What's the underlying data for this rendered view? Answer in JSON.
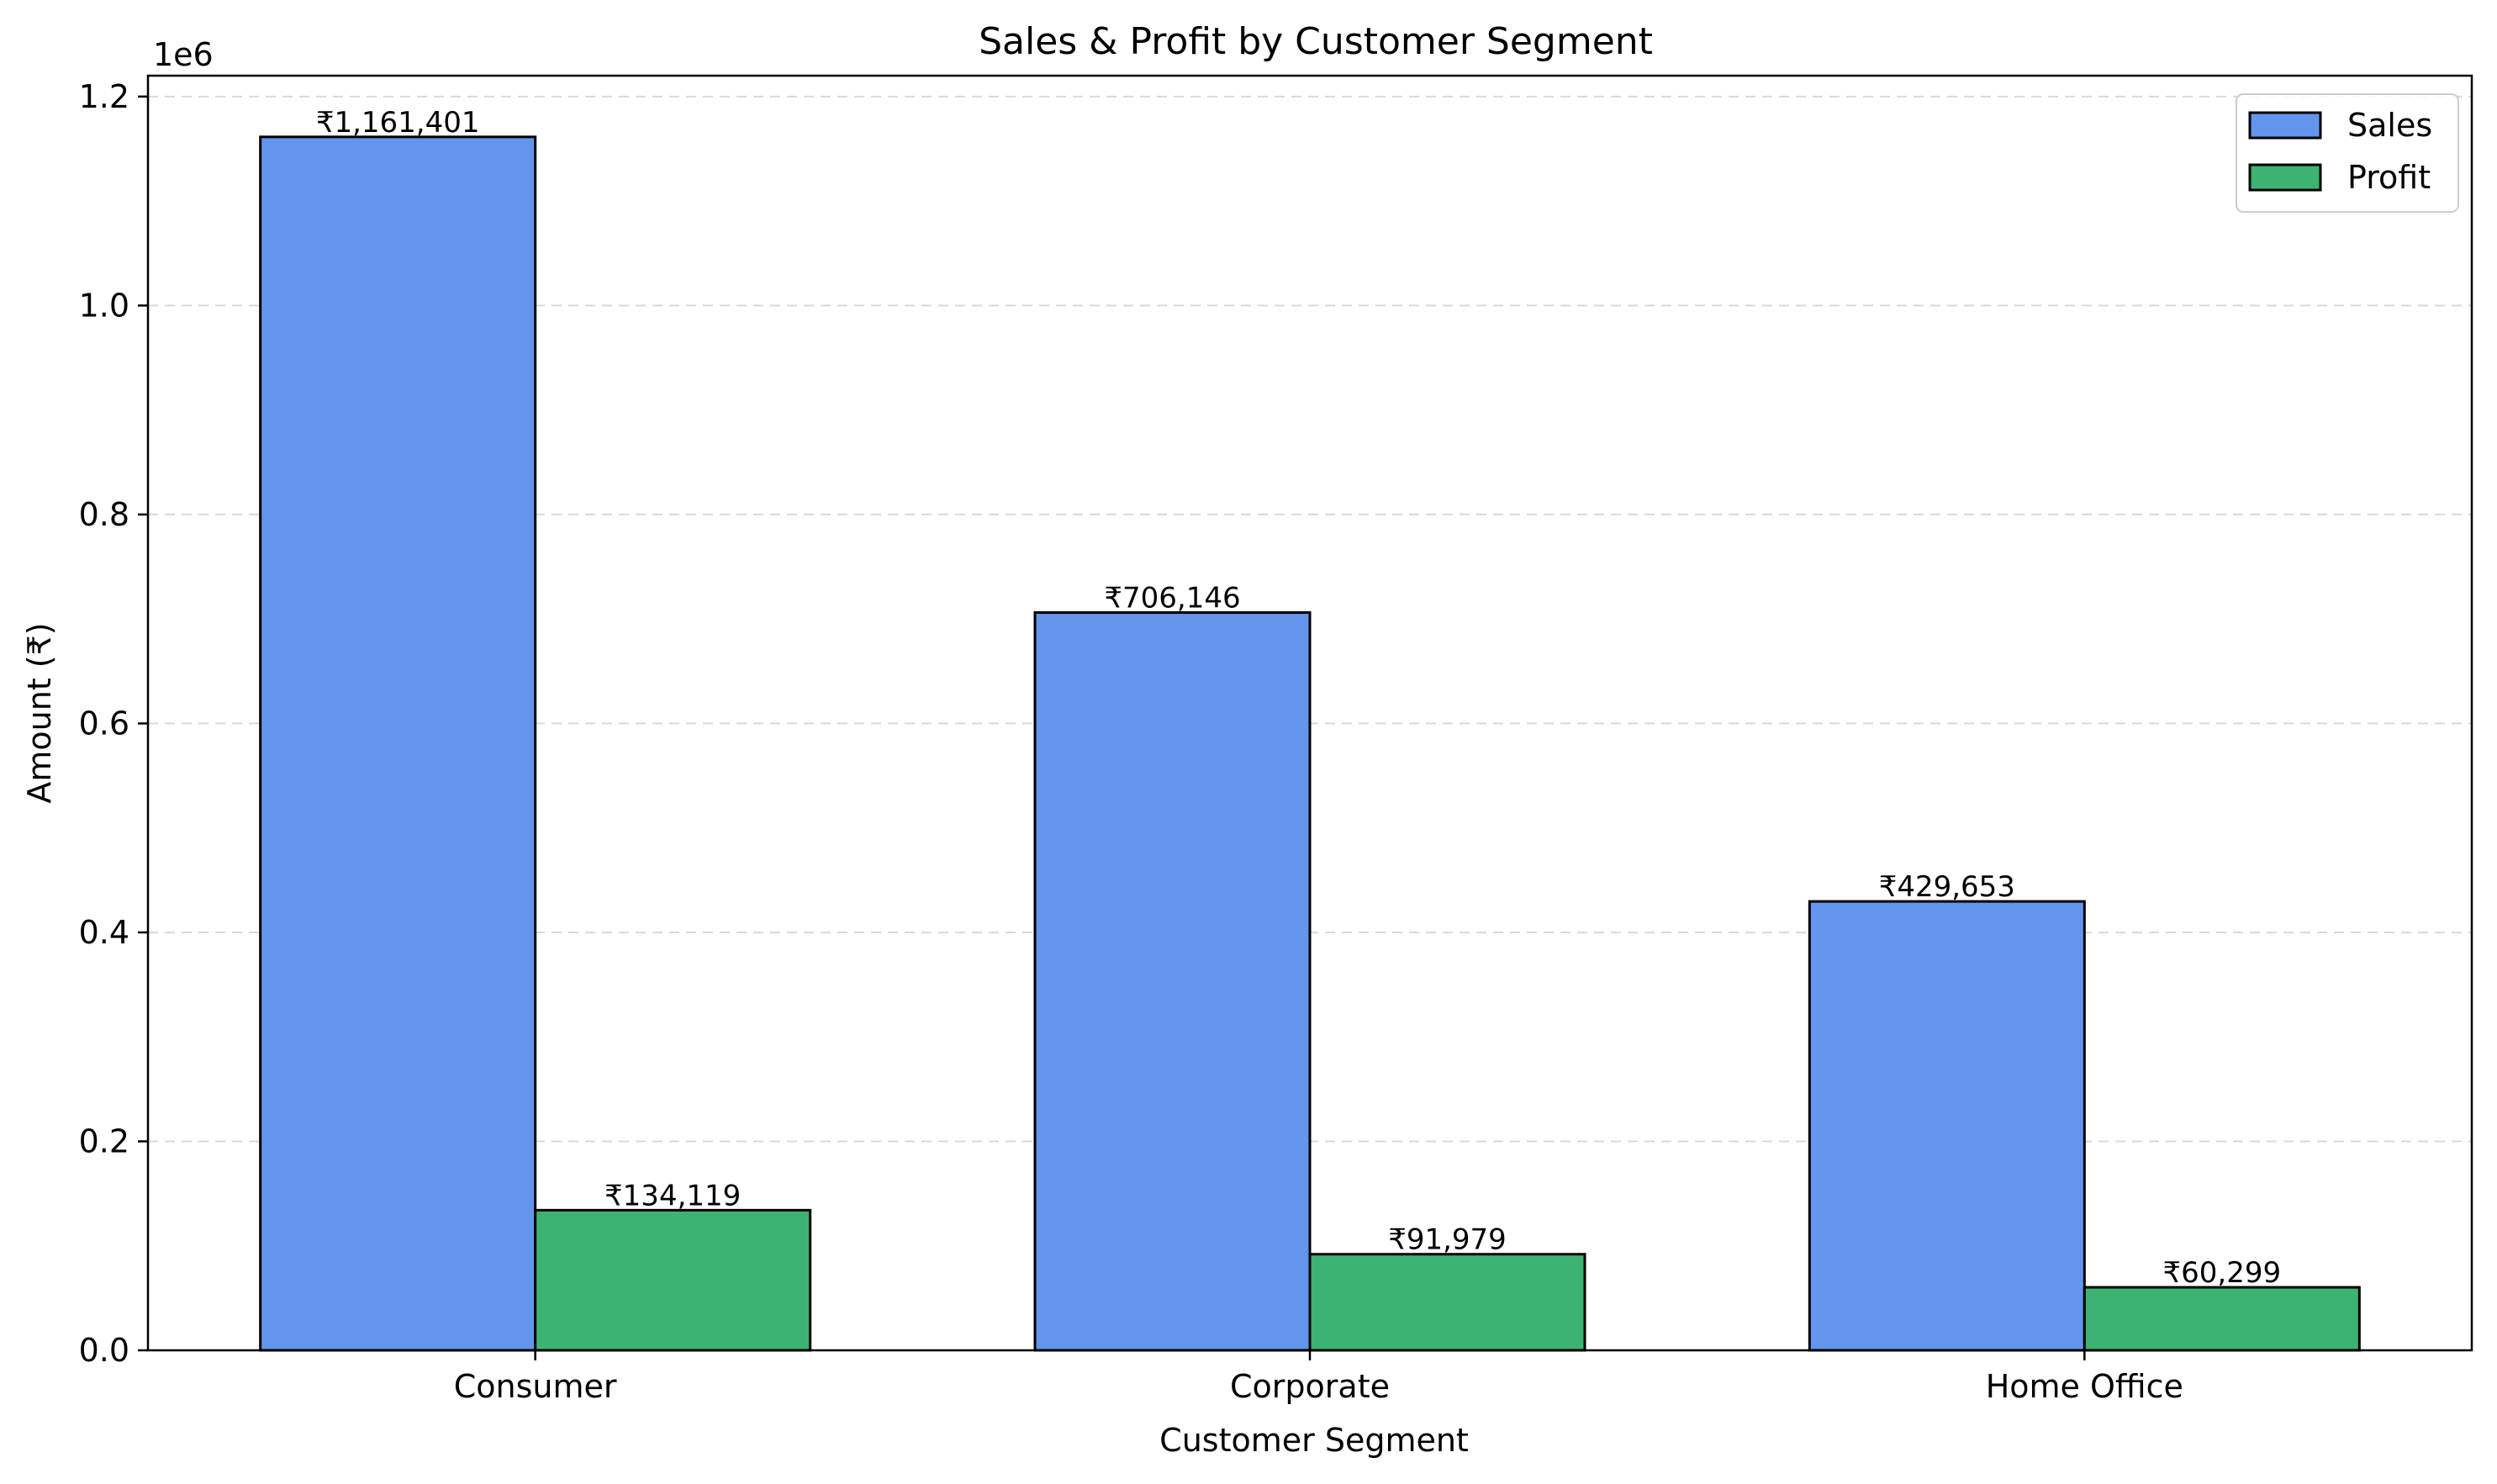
{
  "chart_data": {
    "type": "bar",
    "title": "Sales & Profit by Customer Segment",
    "xlabel": "Customer Segment",
    "ylabel": "Amount (₹)",
    "offset_text": "1e6",
    "categories": [
      "Consumer",
      "Corporate",
      "Home Office"
    ],
    "series": [
      {
        "name": "Sales",
        "color": "#6495ED",
        "values": [
          1161401,
          706146,
          429653
        ],
        "labels": [
          "₹1,161,401",
          "₹706,146",
          "₹429,653"
        ]
      },
      {
        "name": "Profit",
        "color": "#3CB371",
        "values": [
          134119,
          91979,
          60299
        ],
        "labels": [
          "₹134,119",
          "₹91,979",
          "₹60,299"
        ]
      }
    ],
    "ylim": [
      0,
      1220000
    ],
    "yticks": [
      0,
      200000,
      400000,
      600000,
      800000,
      1000000,
      1200000
    ],
    "ytick_labels": [
      "0.0",
      "0.2",
      "0.4",
      "0.6",
      "0.8",
      "1.0",
      "1.2"
    ],
    "grid": "y-dashed",
    "legend_position": "top-right"
  }
}
